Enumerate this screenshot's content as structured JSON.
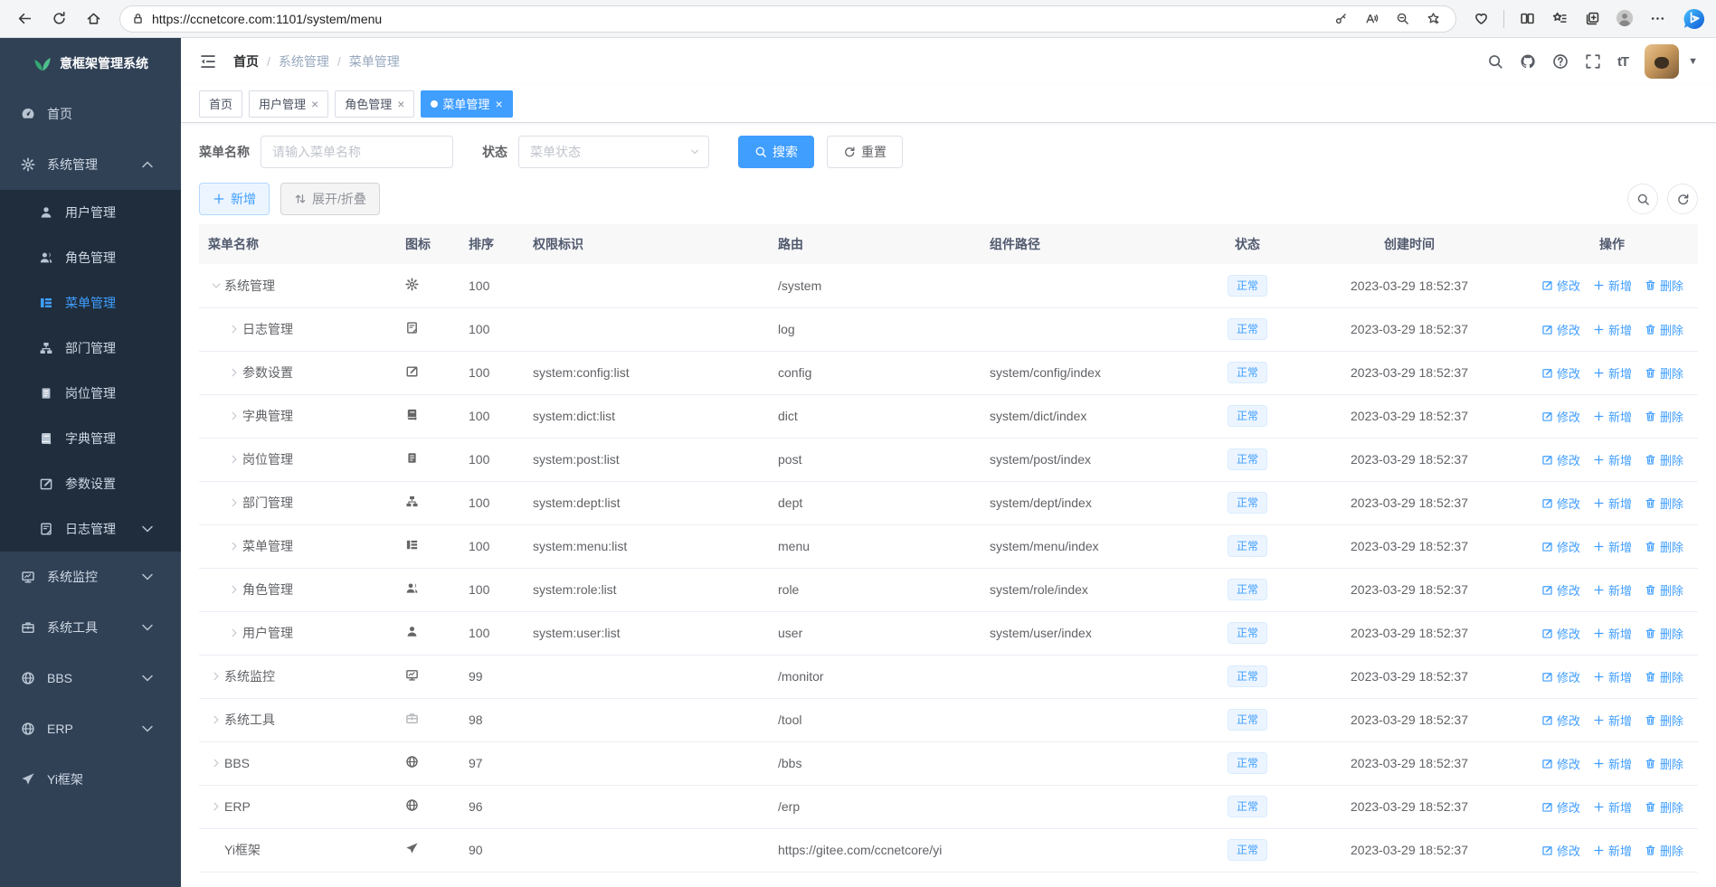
{
  "colors": {
    "accent": "#409eff",
    "sidebar_bg": "#304156",
    "submenu_bg": "#1f2d3d",
    "logo_green": "#42b983",
    "tag_bg": "#ecf5ff",
    "tag_border": "#d9ecff"
  },
  "browser": {
    "url": "https://ccnetcore.com:1101/system/menu"
  },
  "sidebar": {
    "logo_title": "意框架管理系统",
    "items": [
      {
        "key": "home",
        "label": "首页",
        "icon": "dashboard"
      },
      {
        "key": "system",
        "label": "系统管理",
        "icon": "gear",
        "expanded": true,
        "children": [
          {
            "key": "user",
            "label": "用户管理",
            "icon": "user"
          },
          {
            "key": "role",
            "label": "角色管理",
            "icon": "peoples"
          },
          {
            "key": "menu",
            "label": "菜单管理",
            "icon": "tree-table",
            "active": true
          },
          {
            "key": "dept",
            "label": "部门管理",
            "icon": "tree"
          },
          {
            "key": "post",
            "label": "岗位管理",
            "icon": "post"
          },
          {
            "key": "dict",
            "label": "字典管理",
            "icon": "dict"
          },
          {
            "key": "config",
            "label": "参数设置",
            "icon": "edit"
          },
          {
            "key": "log",
            "label": "日志管理",
            "icon": "log",
            "hasArrow": true
          }
        ]
      },
      {
        "key": "monitor",
        "label": "系统监控",
        "icon": "monitor",
        "hasArrow": true
      },
      {
        "key": "tool",
        "label": "系统工具",
        "icon": "tool",
        "hasArrow": true
      },
      {
        "key": "bbs",
        "label": "BBS",
        "icon": "globe",
        "hasArrow": true
      },
      {
        "key": "erp",
        "label": "ERP",
        "icon": "globe",
        "hasArrow": true
      },
      {
        "key": "yi",
        "label": "Yi框架",
        "icon": "guide"
      }
    ]
  },
  "navbar": {
    "breadcrumb": [
      "首页",
      "系统管理",
      "菜单管理"
    ]
  },
  "tags": [
    {
      "key": "home",
      "label": "首页",
      "closable": false,
      "active": false
    },
    {
      "key": "user",
      "label": "用户管理",
      "closable": true,
      "active": false
    },
    {
      "key": "role",
      "label": "角色管理",
      "closable": true,
      "active": false
    },
    {
      "key": "menu",
      "label": "菜单管理",
      "closable": true,
      "active": true
    }
  ],
  "filters": {
    "name_label": "菜单名称",
    "name_placeholder": "请输入菜单名称",
    "status_label": "状态",
    "status_placeholder": "菜单状态",
    "search_label": "搜索",
    "reset_label": "重置"
  },
  "toolbar": {
    "add_label": "新增",
    "expand_label": "展开/折叠"
  },
  "table": {
    "columns": [
      "菜单名称",
      "图标",
      "排序",
      "权限标识",
      "路由",
      "组件路径",
      "状态",
      "创建时间",
      "操作"
    ],
    "action_labels": {
      "edit": "修改",
      "add": "新增",
      "delete": "删除"
    },
    "rows": [
      {
        "name": "系统管理",
        "icon": "gear",
        "level": 0,
        "caret": "expanded",
        "sort": "100",
        "perm": "",
        "route": "/system",
        "component": "",
        "status": "正常",
        "created": "2023-03-29 18:52:37"
      },
      {
        "name": "日志管理",
        "icon": "log",
        "level": 1,
        "caret": "collapsed",
        "sort": "100",
        "perm": "",
        "route": "log",
        "component": "",
        "status": "正常",
        "created": "2023-03-29 18:52:37"
      },
      {
        "name": "参数设置",
        "icon": "edit",
        "level": 1,
        "caret": "collapsed",
        "sort": "100",
        "perm": "system:config:list",
        "route": "config",
        "component": "system/config/index",
        "status": "正常",
        "created": "2023-03-29 18:52:37"
      },
      {
        "name": "字典管理",
        "icon": "dict",
        "level": 1,
        "caret": "collapsed",
        "sort": "100",
        "perm": "system:dict:list",
        "route": "dict",
        "component": "system/dict/index",
        "status": "正常",
        "created": "2023-03-29 18:52:37"
      },
      {
        "name": "岗位管理",
        "icon": "post",
        "level": 1,
        "caret": "collapsed",
        "sort": "100",
        "perm": "system:post:list",
        "route": "post",
        "component": "system/post/index",
        "status": "正常",
        "created": "2023-03-29 18:52:37"
      },
      {
        "name": "部门管理",
        "icon": "tree",
        "level": 1,
        "caret": "collapsed",
        "sort": "100",
        "perm": "system:dept:list",
        "route": "dept",
        "component": "system/dept/index",
        "status": "正常",
        "created": "2023-03-29 18:52:37"
      },
      {
        "name": "菜单管理",
        "icon": "tree-table",
        "level": 1,
        "caret": "collapsed",
        "sort": "100",
        "perm": "system:menu:list",
        "route": "menu",
        "component": "system/menu/index",
        "status": "正常",
        "created": "2023-03-29 18:52:37"
      },
      {
        "name": "角色管理",
        "icon": "peoples",
        "level": 1,
        "caret": "collapsed",
        "sort": "100",
        "perm": "system:role:list",
        "route": "role",
        "component": "system/role/index",
        "status": "正常",
        "created": "2023-03-29 18:52:37"
      },
      {
        "name": "用户管理",
        "icon": "user",
        "level": 1,
        "caret": "collapsed",
        "sort": "100",
        "perm": "system:user:list",
        "route": "user",
        "component": "system/user/index",
        "status": "正常",
        "created": "2023-03-29 18:52:37"
      },
      {
        "name": "系统监控",
        "icon": "monitor",
        "level": 0,
        "caret": "collapsed",
        "sort": "99",
        "perm": "",
        "route": "/monitor",
        "component": "",
        "status": "正常",
        "created": "2023-03-29 18:52:37"
      },
      {
        "name": "系统工具",
        "icon": "tool",
        "level": 0,
        "caret": "collapsed",
        "sort": "98",
        "perm": "",
        "route": "/tool",
        "component": "",
        "status": "正常",
        "created": "2023-03-29 18:52:37"
      },
      {
        "name": "BBS",
        "icon": "globe",
        "level": 0,
        "caret": "collapsed",
        "sort": "97",
        "perm": "",
        "route": "/bbs",
        "component": "",
        "status": "正常",
        "created": "2023-03-29 18:52:37"
      },
      {
        "name": "ERP",
        "icon": "globe",
        "level": 0,
        "caret": "collapsed",
        "sort": "96",
        "perm": "",
        "route": "/erp",
        "component": "",
        "status": "正常",
        "created": "2023-03-29 18:52:37"
      },
      {
        "name": "Yi框架",
        "icon": "guide",
        "level": 0,
        "caret": "none",
        "sort": "90",
        "perm": "",
        "route": "https://gitee.com/ccnetcore/yi",
        "component": "",
        "status": "正常",
        "created": "2023-03-29 18:52:37"
      }
    ]
  }
}
